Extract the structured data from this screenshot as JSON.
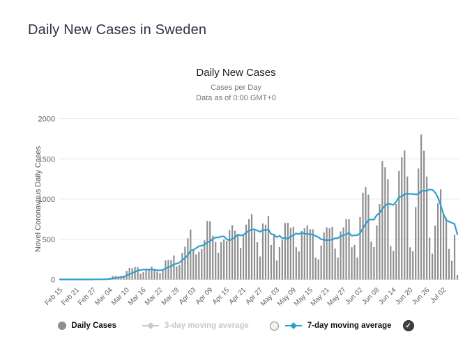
{
  "page": {
    "title": "Daily New Cases in Sweden"
  },
  "chart": {
    "title": "Daily New Cases",
    "subtitle1": "Cases per Day",
    "subtitle2": "Data as of 0:00 GMT+0",
    "ylabel": "Novel Coronavirus Daily Cases"
  },
  "legend": {
    "items": [
      {
        "label": "Daily Cases",
        "marker": "gray-circle",
        "state": "active"
      },
      {
        "label": "3-day moving average",
        "marker": "line-diamond",
        "state": "disabled"
      },
      {
        "label": "7-day moving average",
        "marker": "line-diamond",
        "state": "active",
        "checkbox": "unchecked"
      }
    ],
    "trailing_checkbox": "checked"
  },
  "colors": {
    "page_title": "#2e3346",
    "chart_title": "#1a1a1a",
    "subtitle": "#757575",
    "axis_text": "#606060",
    "gridline": "#e8e8e8",
    "bar": "#8f8f8f",
    "ma7_line": "#2d9fd0",
    "legend_disabled": "#c9c9c9",
    "legend_text": "#111111",
    "checkbox_checked_bg": "#3f3f3f"
  },
  "chart_data": {
    "type": "bar",
    "title": "Daily New Cases",
    "subtitle": [
      "Cases per Day",
      "Data as of 0:00 GMT+0"
    ],
    "xlabel": "",
    "ylabel": "Novel Coronavirus Daily Cases",
    "ylim": [
      0,
      2000
    ],
    "yticks": [
      0,
      500,
      1000,
      1500,
      2000
    ],
    "grid": true,
    "legend_position": "bottom",
    "x_tick_every": 6,
    "x_tick_labels": [
      "Feb 15",
      "Feb 21",
      "Feb 27",
      "Mar 04",
      "Mar 10",
      "Mar 16",
      "Mar 22",
      "Mar 28",
      "Apr 03",
      "Apr 09",
      "Apr 15",
      "Apr 21",
      "Apr 27",
      "May 03",
      "May 09",
      "May 15",
      "May 21",
      "May 27",
      "Jun 02",
      "Jun 08",
      "Jun 14",
      "Jun 20",
      "Jun 26",
      "Jul 02"
    ],
    "categories": [
      "Feb 15",
      "Feb 16",
      "Feb 17",
      "Feb 18",
      "Feb 19",
      "Feb 20",
      "Feb 21",
      "Feb 22",
      "Feb 23",
      "Feb 24",
      "Feb 25",
      "Feb 26",
      "Feb 27",
      "Feb 28",
      "Feb 29",
      "Mar 01",
      "Mar 02",
      "Mar 03",
      "Mar 04",
      "Mar 05",
      "Mar 06",
      "Mar 07",
      "Mar 08",
      "Mar 09",
      "Mar 10",
      "Mar 11",
      "Mar 12",
      "Mar 13",
      "Mar 14",
      "Mar 15",
      "Mar 16",
      "Mar 17",
      "Mar 18",
      "Mar 19",
      "Mar 20",
      "Mar 21",
      "Mar 22",
      "Mar 23",
      "Mar 24",
      "Mar 25",
      "Mar 26",
      "Mar 27",
      "Mar 28",
      "Mar 29",
      "Mar 30",
      "Mar 31",
      "Apr 01",
      "Apr 02",
      "Apr 03",
      "Apr 04",
      "Apr 05",
      "Apr 06",
      "Apr 07",
      "Apr 08",
      "Apr 09",
      "Apr 10",
      "Apr 11",
      "Apr 12",
      "Apr 13",
      "Apr 14",
      "Apr 15",
      "Apr 16",
      "Apr 17",
      "Apr 18",
      "Apr 19",
      "Apr 20",
      "Apr 21",
      "Apr 22",
      "Apr 23",
      "Apr 24",
      "Apr 25",
      "Apr 26",
      "Apr 27",
      "Apr 28",
      "Apr 29",
      "Apr 30",
      "May 01",
      "May 02",
      "May 03",
      "May 04",
      "May 05",
      "May 06",
      "May 07",
      "May 08",
      "May 09",
      "May 10",
      "May 11",
      "May 12",
      "May 13",
      "May 14",
      "May 15",
      "May 16",
      "May 17",
      "May 18",
      "May 19",
      "May 20",
      "May 21",
      "May 22",
      "May 23",
      "May 24",
      "May 25",
      "May 26",
      "May 27",
      "May 28",
      "May 29",
      "May 30",
      "May 31",
      "Jun 01",
      "Jun 02",
      "Jun 03",
      "Jun 04",
      "Jun 05",
      "Jun 06",
      "Jun 07",
      "Jun 08",
      "Jun 09",
      "Jun 10",
      "Jun 11",
      "Jun 12",
      "Jun 13",
      "Jun 14",
      "Jun 15",
      "Jun 16",
      "Jun 17",
      "Jun 18",
      "Jun 19",
      "Jun 20",
      "Jun 21",
      "Jun 22",
      "Jun 23",
      "Jun 24",
      "Jun 25",
      "Jun 26",
      "Jun 27",
      "Jun 28",
      "Jun 29",
      "Jun 30",
      "Jul 01",
      "Jul 02",
      "Jul 03",
      "Jul 04",
      "Jul 05",
      "Jul 06",
      "Jul 07"
    ],
    "series": [
      {
        "name": "Daily Cases",
        "type": "bar",
        "values": [
          0,
          0,
          0,
          0,
          0,
          0,
          0,
          0,
          0,
          0,
          0,
          1,
          5,
          4,
          2,
          1,
          2,
          9,
          22,
          42,
          43,
          36,
          42,
          45,
          107,
          143,
          140,
          155,
          153,
          72,
          90,
          118,
          127,
          160,
          131,
          96,
          80,
          119,
          236,
          240,
          240,
          297,
          163,
          180,
          328,
          407,
          512,
          621,
          365,
          312,
          344,
          376,
          487,
          726,
          722,
          544,
          466,
          332,
          465,
          497,
          482,
          613,
          676,
          606,
          563,
          392,
          545,
          682,
          751,
          812,
          610,
          463,
          286,
          695,
          681,
          790,
          428,
          562,
          235,
          404,
          495,
          702,
          705,
          642,
          656,
          401,
          348,
          602,
          637,
          673,
          625,
          624,
          271,
          250,
          422,
          584,
          649,
          637,
          656,
          383,
          272,
          597,
          648,
          749,
          751,
          401,
          429,
          272,
          776,
          1080,
          1150,
          1056,
          470,
          403,
          673,
          939,
          1474,
          1396,
          1247,
          415,
          355,
          940,
          1350,
          1520,
          1605,
          1280,
          400,
          350,
          900,
          1380,
          1803,
          1602,
          1280,
          520,
          320,
          671,
          947,
          1121,
          820,
          767,
          380,
          234,
          555,
          57
        ]
      },
      {
        "name": "7-day moving average",
        "type": "line",
        "derived": "trailing 7-day mean of Daily Cases, drawn in blue"
      },
      {
        "name": "3-day moving average",
        "type": "line",
        "state": "disabled (not drawn)"
      }
    ]
  }
}
